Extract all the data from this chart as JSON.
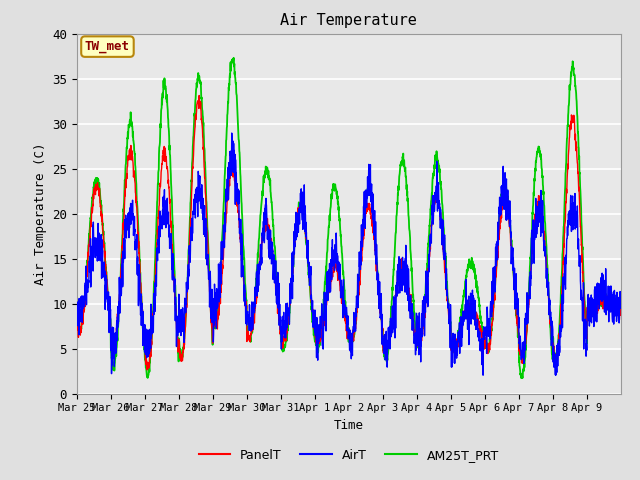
{
  "title": "Air Temperature",
  "ylabel": "Air Temperature (C)",
  "xlabel": "Time",
  "ylim": [
    0,
    40
  ],
  "fig_bg": "#e0e0e0",
  "plot_bg": "#e8e8e8",
  "grid_color": "white",
  "annotation_text": "TW_met",
  "annotation_color": "#8B0000",
  "annotation_bg": "#ffffc0",
  "annotation_border": "#b8860b",
  "colors": {
    "PanelT": "red",
    "AirT": "blue",
    "AM25T_PRT": "#00cc00"
  },
  "lw": {
    "PanelT": 1.0,
    "AirT": 1.0,
    "AM25T_PRT": 1.3
  },
  "x_tick_labels": [
    "Mar 25",
    "Mar 26",
    "Mar 27",
    "Mar 28",
    "Mar 29",
    "Mar 30",
    "Mar 31",
    "Apr 1",
    "Apr 2",
    "Apr 3",
    "Apr 4",
    "Apr 5",
    "Apr 6",
    "Apr 7",
    "Apr 8",
    "Apr 9"
  ],
  "yticks": [
    0,
    5,
    10,
    15,
    20,
    25,
    30,
    35,
    40
  ],
  "num_days": 16,
  "pts_per_day": 144,
  "seed": 7,
  "day_peaks_red": [
    23,
    27,
    27,
    33,
    25,
    19,
    21,
    14,
    21,
    14,
    22,
    10,
    22,
    22,
    31,
    10
  ],
  "day_lows_red": [
    7,
    5,
    3,
    4,
    8,
    6,
    6,
    6,
    6,
    5,
    6,
    5,
    5,
    4,
    4,
    9
  ],
  "day_peaks_blue": [
    17,
    20,
    21,
    23,
    25,
    19,
    21,
    15,
    23,
    14,
    22,
    9,
    21,
    22,
    21,
    10
  ],
  "day_lows_blue": [
    9,
    5,
    6,
    8,
    8,
    8,
    6,
    7,
    6,
    5,
    6,
    5,
    7,
    5,
    4,
    9
  ],
  "day_peaks_green": [
    24,
    30,
    34,
    35,
    37,
    25,
    21,
    23,
    23,
    26,
    26,
    15,
    23,
    27,
    36,
    10
  ],
  "day_lows_green": [
    7,
    3,
    2,
    4,
    8,
    6,
    5,
    5,
    6,
    4,
    6,
    5,
    5,
    2,
    4,
    9
  ]
}
